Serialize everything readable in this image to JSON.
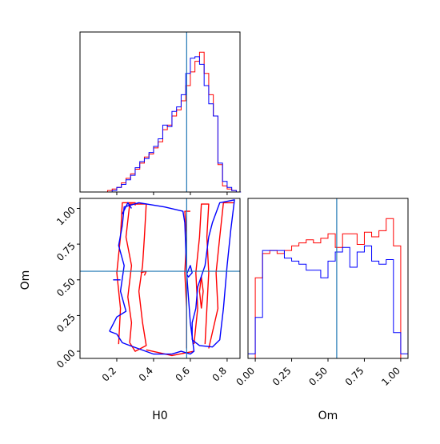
{
  "chart_data": {
    "type": "corner-plot",
    "colors": {
      "red": "#ff0000",
      "blue": "#0000ff",
      "truth": "#1f77b4",
      "frame": "#000000"
    },
    "truth": {
      "H0": 0.58,
      "Om": 0.56
    },
    "panels": {
      "hist_H0": {
        "type": "histogram",
        "xlim": [
          0.0,
          0.87
        ],
        "ymax": 1.0,
        "bins": [
          0.0,
          0.025,
          0.05,
          0.075,
          0.1,
          0.125,
          0.15,
          0.175,
          0.2,
          0.225,
          0.25,
          0.275,
          0.3,
          0.325,
          0.35,
          0.375,
          0.4,
          0.425,
          0.45,
          0.475,
          0.5,
          0.525,
          0.55,
          0.575,
          0.6,
          0.625,
          0.65,
          0.675,
          0.7,
          0.725,
          0.75,
          0.775,
          0.8,
          0.825,
          0.85,
          0.875
        ],
        "series": [
          {
            "name": "red",
            "values": [
              0,
              0,
              0,
              0,
              0,
              0,
              0.01,
              0.02,
              0.03,
              0.06,
              0.09,
              0.12,
              0.15,
              0.19,
              0.23,
              0.25,
              0.29,
              0.33,
              0.41,
              0.44,
              0.5,
              0.54,
              0.6,
              0.7,
              0.79,
              0.86,
              0.92,
              0.78,
              0.64,
              0.5,
              0.18,
              0.04,
              0.02,
              0.01,
              0,
              0
            ]
          },
          {
            "name": "blue",
            "values": [
              0,
              0,
              0,
              0,
              0,
              0,
              0,
              0.01,
              0.03,
              0.05,
              0.08,
              0.11,
              0.16,
              0.2,
              0.22,
              0.26,
              0.3,
              0.35,
              0.44,
              0.43,
              0.53,
              0.56,
              0.64,
              0.78,
              0.88,
              0.89,
              0.84,
              0.7,
              0.58,
              0.5,
              0.19,
              0.07,
              0.03,
              0.01,
              0,
              0
            ]
          }
        ]
      },
      "hist_Om": {
        "type": "histogram",
        "xlim": [
          -0.05,
          1.05
        ],
        "ymax": 1.0,
        "bins": [
          -0.05,
          0.0,
          0.05,
          0.1,
          0.15,
          0.2,
          0.25,
          0.3,
          0.35,
          0.4,
          0.45,
          0.5,
          0.55,
          0.6,
          0.65,
          0.7,
          0.75,
          0.8,
          0.85,
          0.9,
          0.95,
          1.0,
          1.05
        ],
        "series": [
          {
            "name": "red",
            "values": [
              0,
              0.53,
              0.69,
              0.71,
              0.69,
              0.71,
              0.74,
              0.76,
              0.78,
              0.76,
              0.79,
              0.82,
              0.73,
              0.82,
              0.82,
              0.75,
              0.83,
              0.8,
              0.84,
              0.92,
              0.74,
              0
            ]
          },
          {
            "name": "blue",
            "values": [
              0.03,
              0.27,
              0.71,
              0.71,
              0.71,
              0.66,
              0.64,
              0.62,
              0.58,
              0.58,
              0.53,
              0.64,
              0.7,
              0.73,
              0.6,
              0.7,
              0.74,
              0.64,
              0.62,
              0.65,
              0.17,
              0.03
            ]
          }
        ]
      },
      "contour_H0_Om": {
        "type": "contour",
        "xlim": [
          0.0,
          0.87
        ],
        "ylim": [
          -0.05,
          1.07
        ],
        "series": [
          {
            "name": "red",
            "paths": [
              [
                [
                  0.27,
                  0.06
                ],
                [
                  0.28,
                  0.2
                ],
                [
                  0.26,
                  0.38
                ],
                [
                  0.28,
                  0.6
                ],
                [
                  0.25,
                  0.8
                ],
                [
                  0.27,
                  1.03
                ],
                [
                  0.36,
                  1.03
                ],
                [
                  0.35,
                  0.8
                ],
                [
                  0.34,
                  0.6
                ],
                [
                  0.32,
                  0.42
                ],
                [
                  0.34,
                  0.2
                ],
                [
                  0.36,
                  0.04
                ],
                [
                  0.3,
                  0.0
                ],
                [
                  0.27,
                  0.06
                ]
              ],
              [
                [
                  0.21,
                  0.05
                ],
                [
                  0.22,
                  0.3
                ],
                [
                  0.2,
                  0.55
                ],
                [
                  0.22,
                  0.8
                ],
                [
                  0.23,
                  1.04
                ],
                [
                  0.3,
                  1.04
                ],
                [
                  0.3,
                  1.02
                ]
              ],
              [
                [
                  0.36,
                  0.01
                ],
                [
                  0.5,
                  -0.03
                ],
                [
                  0.62,
                  0.0
                ]
              ],
              [
                [
                  0.58,
                  0.02
                ],
                [
                  0.58,
                  0.3
                ],
                [
                  0.57,
                  0.55
                ],
                [
                  0.58,
                  0.8
                ],
                [
                  0.57,
                  0.98
                ],
                [
                  0.6,
                  0.98
                ]
              ],
              [
                [
                  0.62,
                  0.05
                ],
                [
                  0.64,
                  0.3
                ],
                [
                  0.63,
                  0.55
                ],
                [
                  0.65,
                  0.8
                ],
                [
                  0.66,
                  1.03
                ],
                [
                  0.7,
                  1.03
                ],
                [
                  0.69,
                  0.8
                ],
                [
                  0.7,
                  0.55
                ],
                [
                  0.69,
                  0.3
                ],
                [
                  0.68,
                  0.05
                ]
              ],
              [
                [
                  0.7,
                  0.02
                ],
                [
                  0.75,
                  0.3
                ],
                [
                  0.74,
                  0.55
                ],
                [
                  0.76,
                  0.8
                ],
                [
                  0.78,
                  1.04
                ],
                [
                  0.84,
                  1.04
                ]
              ],
              [
                [
                  0.66,
                  0.3
                ],
                [
                  0.67,
                  0.42
                ],
                [
                  0.66,
                  0.52
                ],
                [
                  0.65,
                  0.42
                ],
                [
                  0.66,
                  0.3
                ]
              ],
              [
                [
                  0.33,
                  0.55
                ],
                [
                  0.36,
                  0.56
                ],
                [
                  0.35,
                  0.53
                ]
              ]
            ]
          },
          {
            "name": "blue",
            "paths": [
              [
                [
                  0.16,
                  0.14
                ],
                [
                  0.2,
                  0.12
                ],
                [
                  0.23,
                  0.06
                ],
                [
                  0.27,
                  0.04
                ],
                [
                  0.4,
                  -0.02
                ],
                [
                  0.5,
                  -0.02
                ],
                [
                  0.55,
                  0.0
                ],
                [
                  0.6,
                  -0.02
                ],
                [
                  0.62,
                  0.0
                ],
                [
                  0.6,
                  0.2
                ],
                [
                  0.58,
                  0.55
                ],
                [
                  0.57,
                  0.9
                ],
                [
                  0.56,
                  0.98
                ],
                [
                  0.46,
                  1.01
                ],
                [
                  0.32,
                  1.04
                ],
                [
                  0.24,
                  1.01
                ],
                [
                  0.23,
                  0.88
                ],
                [
                  0.21,
                  0.74
                ],
                [
                  0.24,
                  0.6
                ],
                [
                  0.22,
                  0.42
                ],
                [
                  0.25,
                  0.28
                ],
                [
                  0.2,
                  0.24
                ],
                [
                  0.16,
                  0.14
                ]
              ],
              [
                [
                  0.61,
                  0.08
                ],
                [
                  0.65,
                  0.04
                ],
                [
                  0.72,
                  0.03
                ],
                [
                  0.76,
                  0.08
                ],
                [
                  0.78,
                  0.3
                ],
                [
                  0.8,
                  0.6
                ],
                [
                  0.82,
                  0.85
                ],
                [
                  0.84,
                  1.06
                ],
                [
                  0.76,
                  1.04
                ],
                [
                  0.72,
                  0.9
                ],
                [
                  0.7,
                  0.8
                ],
                [
                  0.68,
                  0.6
                ],
                [
                  0.64,
                  0.45
                ],
                [
                  0.63,
                  0.3
                ],
                [
                  0.61,
                  0.2
                ],
                [
                  0.61,
                  0.08
                ]
              ],
              [
                [
                  0.23,
                  0.96
                ],
                [
                  0.26,
                  1.04
                ],
                [
                  0.28,
                  1.0
                ]
              ],
              [
                [
                  0.18,
                  0.5
                ],
                [
                  0.22,
                  0.5
                ]
              ],
              [
                [
                  0.58,
                  0.54
                ],
                [
                  0.6,
                  0.6
                ],
                [
                  0.61,
                  0.55
                ],
                [
                  0.59,
                  0.52
                ],
                [
                  0.58,
                  0.54
                ]
              ]
            ]
          }
        ]
      }
    },
    "x_ticks_H0": [
      "0.2",
      "0.4",
      "0.6",
      "0.8"
    ],
    "x_tick_values_H0": [
      0.2,
      0.4,
      0.6,
      0.8
    ],
    "y_ticks_Om": [
      "0.00",
      "0.25",
      "0.50",
      "0.75",
      "1.00"
    ],
    "y_tick_values_Om": [
      0.0,
      0.25,
      0.5,
      0.75,
      1.0
    ],
    "x_ticks_Om": [
      "0.00",
      "0.25",
      "0.50",
      "0.75",
      "1.00"
    ],
    "x_tick_values_Om": [
      0.0,
      0.25,
      0.5,
      0.75,
      1.0
    ],
    "xlabel_left": "H0",
    "xlabel_right": "Om",
    "ylabel_left": "Om"
  }
}
